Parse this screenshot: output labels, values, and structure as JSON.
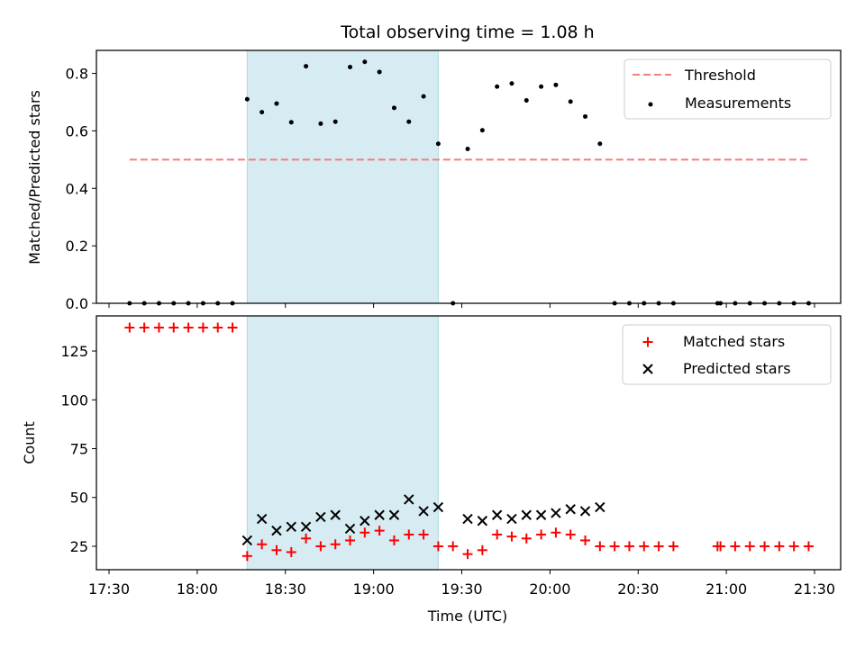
{
  "title": "Total observing time = 1.08 h",
  "colors": {
    "threshold": "#f27f7f",
    "measurements": "#000000",
    "matched": "#ff0000",
    "predicted": "#000000",
    "span_fill": "#add8e6"
  },
  "chart_data": [
    {
      "type": "scatter",
      "ylabel": "Matched/Predicted stars",
      "ylim": [
        0,
        0.88
      ],
      "yticks": [
        "0.0",
        "0.2",
        "0.4",
        "0.6",
        "0.8"
      ],
      "legend_position": "top-right",
      "highlight_span": [
        "18:17",
        "19:22"
      ],
      "threshold": {
        "name": "Threshold",
        "value": 0.5,
        "x_start": "17:37",
        "x_end": "21:28"
      },
      "series": [
        {
          "name": "Measurements",
          "points": [
            [
              "17:37",
              0
            ],
            [
              "17:42",
              0
            ],
            [
              "17:47",
              0
            ],
            [
              "17:52",
              0
            ],
            [
              "17:57",
              0
            ],
            [
              "18:02",
              0
            ],
            [
              "18:07",
              0
            ],
            [
              "18:12",
              0
            ],
            [
              "18:17",
              0.71
            ],
            [
              "18:22",
              0.665
            ],
            [
              "18:27",
              0.695
            ],
            [
              "18:32",
              0.63
            ],
            [
              "18:37",
              0.825
            ],
            [
              "18:42",
              0.625
            ],
            [
              "18:47",
              0.632
            ],
            [
              "18:52",
              0.822
            ],
            [
              "18:57",
              0.84
            ],
            [
              "19:02",
              0.805
            ],
            [
              "19:07",
              0.68
            ],
            [
              "19:12",
              0.632
            ],
            [
              "19:17",
              0.72
            ],
            [
              "19:22",
              0.555
            ],
            [
              "19:27",
              0
            ],
            [
              "19:32",
              0.537
            ],
            [
              "19:37",
              0.602
            ],
            [
              "19:42",
              0.754
            ],
            [
              "19:47",
              0.765
            ],
            [
              "19:52",
              0.706
            ],
            [
              "19:57",
              0.754
            ],
            [
              "20:02",
              0.76
            ],
            [
              "20:07",
              0.702
            ],
            [
              "20:12",
              0.65
            ],
            [
              "20:17",
              0.555
            ],
            [
              "20:22",
              0
            ],
            [
              "20:27",
              0
            ],
            [
              "20:32",
              0
            ],
            [
              "20:37",
              0
            ],
            [
              "20:42",
              0
            ],
            [
              "20:57",
              0
            ],
            [
              "20:58",
              0
            ],
            [
              "21:03",
              0
            ],
            [
              "21:08",
              0
            ],
            [
              "21:13",
              0
            ],
            [
              "21:18",
              0
            ],
            [
              "21:23",
              0
            ],
            [
              "21:28",
              0
            ]
          ]
        }
      ]
    },
    {
      "type": "scatter",
      "xlabel": "Time (UTC)",
      "ylabel": "Count",
      "ylim": [
        13,
        143
      ],
      "yticks": [
        "25",
        "50",
        "75",
        "100",
        "125"
      ],
      "xticks": [
        "17:30",
        "18:00",
        "18:30",
        "19:00",
        "19:30",
        "20:00",
        "20:30",
        "21:00",
        "21:30"
      ],
      "legend_position": "top-right",
      "highlight_span": [
        "18:17",
        "19:22"
      ],
      "series": [
        {
          "name": "Matched stars",
          "marker": "plus",
          "points": [
            [
              "17:37",
              137
            ],
            [
              "17:42",
              137
            ],
            [
              "17:47",
              137
            ],
            [
              "17:52",
              137
            ],
            [
              "17:57",
              137
            ],
            [
              "18:02",
              137
            ],
            [
              "18:07",
              137
            ],
            [
              "18:12",
              137
            ],
            [
              "18:17",
              20
            ],
            [
              "18:22",
              26
            ],
            [
              "18:27",
              23
            ],
            [
              "18:32",
              22
            ],
            [
              "18:37",
              29
            ],
            [
              "18:42",
              25
            ],
            [
              "18:47",
              26
            ],
            [
              "18:52",
              28
            ],
            [
              "18:57",
              32
            ],
            [
              "19:02",
              33
            ],
            [
              "19:07",
              28
            ],
            [
              "19:12",
              31
            ],
            [
              "19:17",
              31
            ],
            [
              "19:22",
              25
            ],
            [
              "19:27",
              25
            ],
            [
              "19:32",
              21
            ],
            [
              "19:37",
              23
            ],
            [
              "19:42",
              31
            ],
            [
              "19:47",
              30
            ],
            [
              "19:52",
              29
            ],
            [
              "19:57",
              31
            ],
            [
              "20:02",
              32
            ],
            [
              "20:07",
              31
            ],
            [
              "20:12",
              28
            ],
            [
              "20:17",
              25
            ],
            [
              "20:22",
              25
            ],
            [
              "20:27",
              25
            ],
            [
              "20:32",
              25
            ],
            [
              "20:37",
              25
            ],
            [
              "20:42",
              25
            ],
            [
              "20:57",
              25
            ],
            [
              "20:58",
              25
            ],
            [
              "21:03",
              25
            ],
            [
              "21:08",
              25
            ],
            [
              "21:13",
              25
            ],
            [
              "21:18",
              25
            ],
            [
              "21:23",
              25
            ],
            [
              "21:28",
              25
            ]
          ]
        },
        {
          "name": "Predicted stars",
          "marker": "x",
          "points": [
            [
              "18:17",
              28
            ],
            [
              "18:22",
              39
            ],
            [
              "18:27",
              33
            ],
            [
              "18:32",
              35
            ],
            [
              "18:37",
              35
            ],
            [
              "18:42",
              40
            ],
            [
              "18:47",
              41
            ],
            [
              "18:52",
              34
            ],
            [
              "18:57",
              38
            ],
            [
              "19:02",
              41
            ],
            [
              "19:07",
              41
            ],
            [
              "19:12",
              49
            ],
            [
              "19:17",
              43
            ],
            [
              "19:22",
              45
            ],
            [
              "19:32",
              39
            ],
            [
              "19:37",
              38
            ],
            [
              "19:42",
              41
            ],
            [
              "19:47",
              39
            ],
            [
              "19:52",
              41
            ],
            [
              "19:57",
              41
            ],
            [
              "20:02",
              42
            ],
            [
              "20:07",
              44
            ],
            [
              "20:12",
              43
            ],
            [
              "20:17",
              45
            ]
          ]
        }
      ]
    }
  ]
}
